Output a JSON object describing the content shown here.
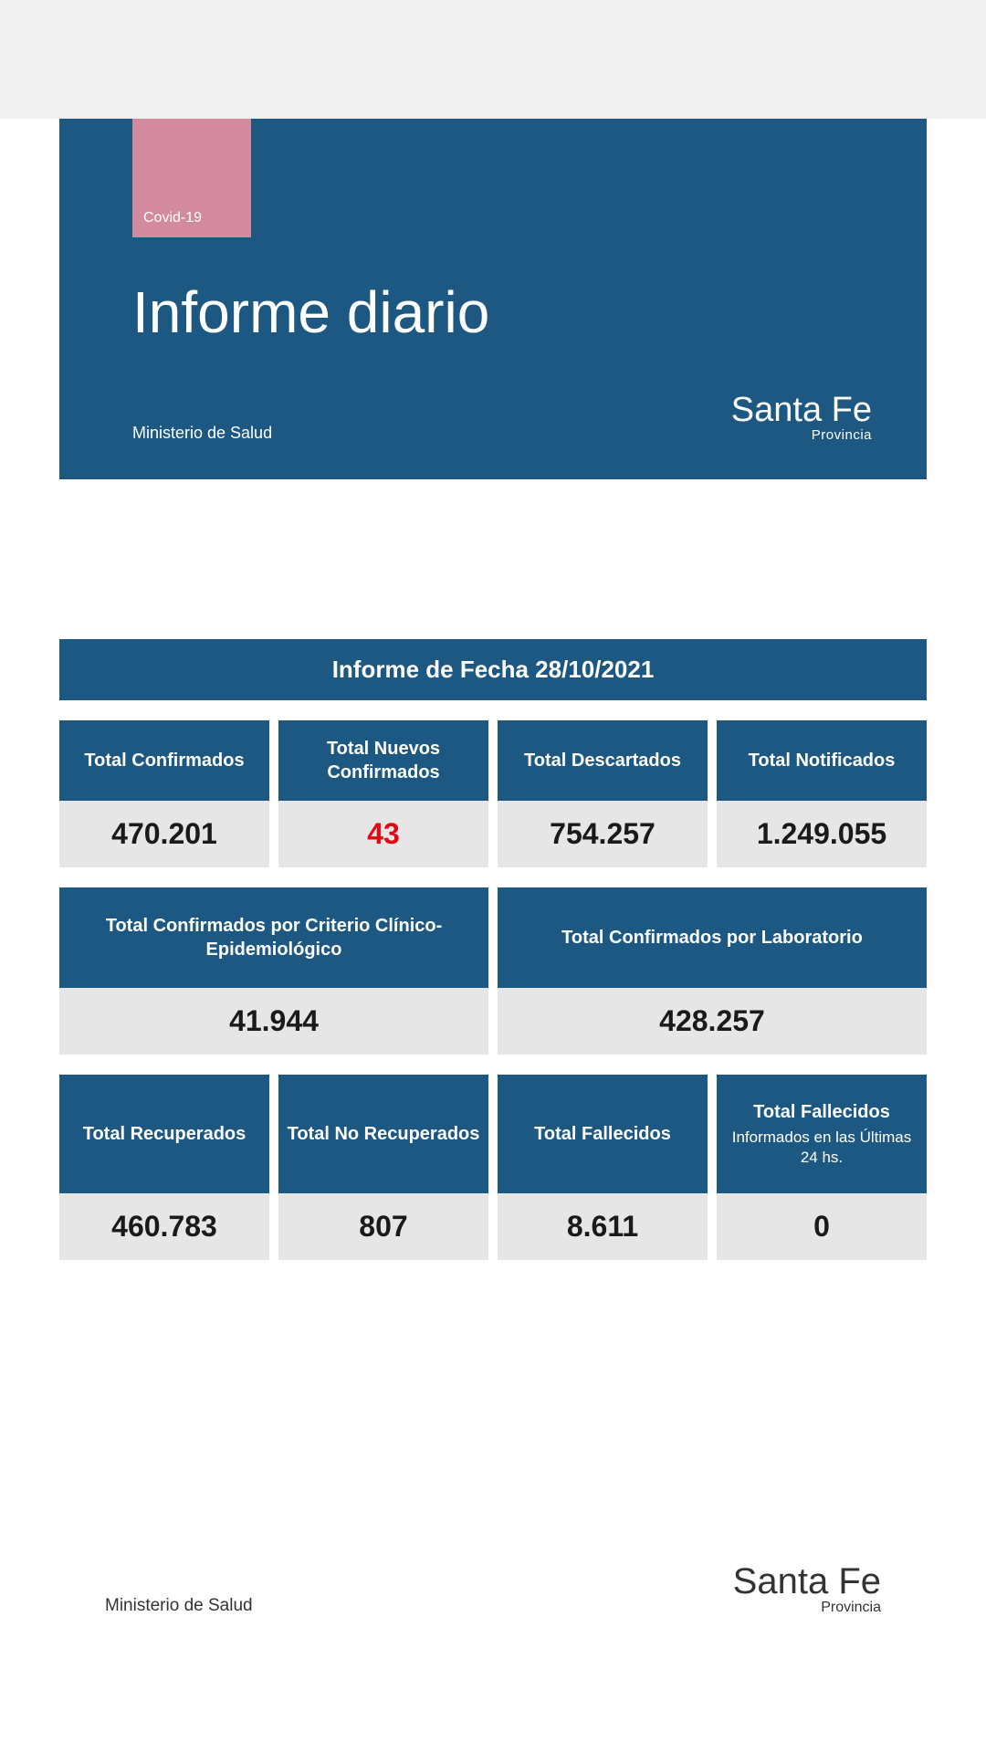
{
  "colors": {
    "primary": "#1d5882",
    "badge": "#d38a9e",
    "cell_bg": "#e6e6e6",
    "accent_red": "#e30613",
    "top_bar": "#f0f0f0",
    "text_dark": "#1a1a1a",
    "text_white": "#ffffff"
  },
  "header": {
    "badge_label": "Covid-19",
    "title": "Informe diario",
    "ministry": "Ministerio de Salud",
    "logo_main": "Santa Fe",
    "logo_sub": "Provincia"
  },
  "date_banner": "Informe de Fecha 28/10/2021",
  "row1": [
    {
      "label": "Total Confirmados",
      "value": "470.201",
      "red": false
    },
    {
      "label": "Total Nuevos Confirmados",
      "value": "43",
      "red": true
    },
    {
      "label": "Total Descartados",
      "value": "754.257",
      "red": false
    },
    {
      "label": "Total Notificados",
      "value": "1.249.055",
      "red": false
    }
  ],
  "row2": [
    {
      "label": "Total Confirmados por Criterio Clínico-Epidemiológico",
      "value": "41.944"
    },
    {
      "label": "Total Confirmados por Laboratorio",
      "value": "428.257"
    }
  ],
  "row3": [
    {
      "label": "Total Recuperados",
      "sub": "",
      "value": "460.783"
    },
    {
      "label": "Total No Recuperados",
      "sub": "",
      "value": "807"
    },
    {
      "label": "Total Fallecidos",
      "sub": "",
      "value": "8.611"
    },
    {
      "label": "Total Fallecidos",
      "sub": "Informados en las Últimas 24 hs.",
      "value": "0"
    }
  ],
  "footer": {
    "ministry": "Ministerio de Salud",
    "logo_main": "Santa Fe",
    "logo_sub": "Provincia"
  }
}
